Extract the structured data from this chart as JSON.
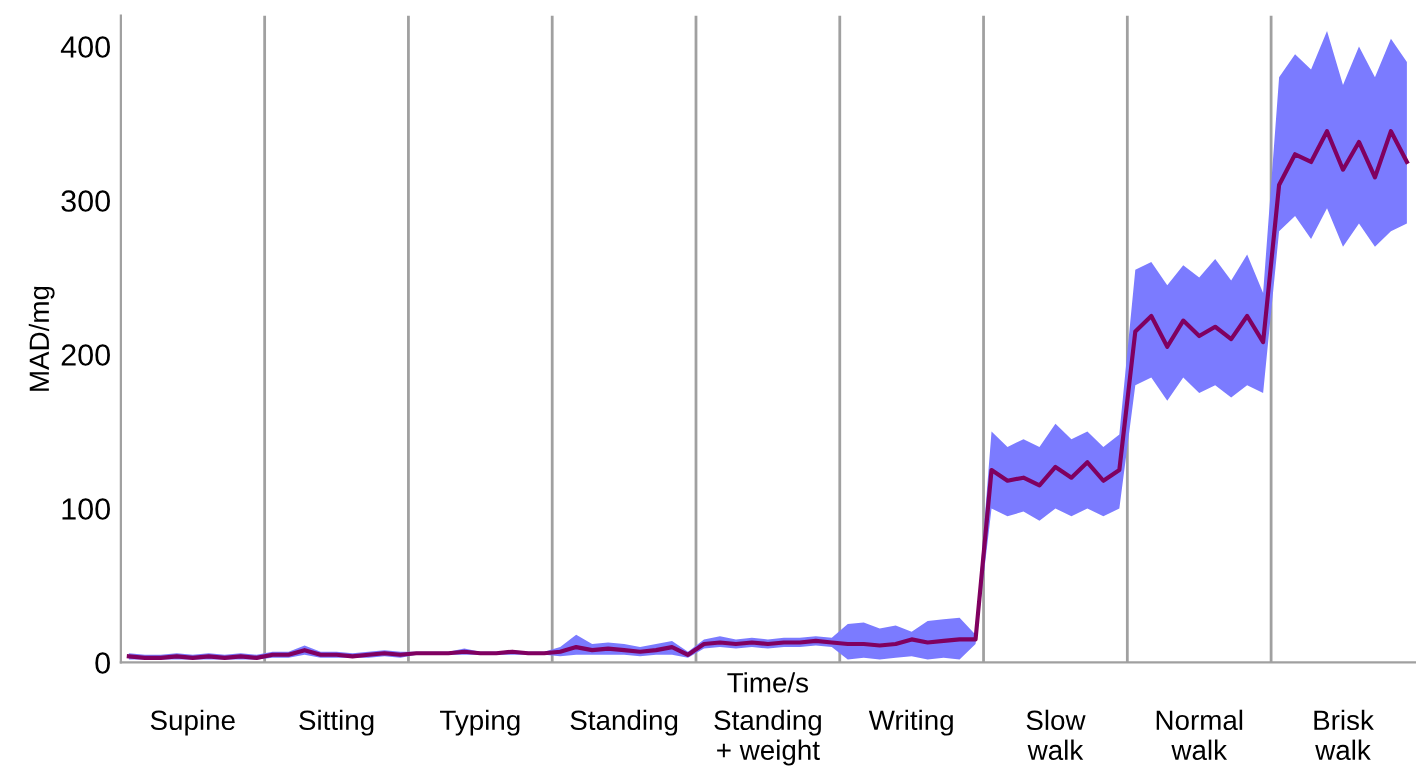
{
  "chart_data": {
    "type": "line",
    "xlabel": "Time/s",
    "ylabel": "MAD/mg",
    "categories": [
      null,
      null,
      null,
      null,
      "Supine",
      null,
      null,
      null,
      null,
      null,
      null,
      null,
      null,
      "Sitting",
      null,
      null,
      null,
      null,
      null,
      null,
      null,
      null,
      "Typing",
      null,
      null,
      null,
      null,
      null,
      null,
      null,
      null,
      "Standing",
      null,
      null,
      null,
      null,
      null,
      null,
      null,
      null,
      "Standing\n+ weight",
      null,
      null,
      null,
      null,
      null,
      null,
      null,
      null,
      "Writing",
      null,
      null,
      null,
      null,
      null,
      null,
      null,
      null,
      "Slow\nwalk",
      null,
      null,
      null,
      null,
      null,
      null,
      null,
      null,
      "Normal\nwalk",
      null,
      null,
      null,
      null,
      null,
      null,
      null,
      null,
      "Brisk\nwalk",
      null,
      null,
      null,
      null
    ],
    "series": [
      {
        "color": "#800060",
        "values": [
          4,
          3,
          3,
          4,
          3,
          4,
          3,
          4,
          3,
          5,
          5,
          8,
          5,
          5,
          4,
          5,
          6,
          5,
          6,
          6,
          6,
          7,
          6,
          6,
          7,
          6,
          6,
          7,
          10,
          8,
          9,
          8,
          7,
          8,
          10,
          5,
          12,
          13,
          12,
          13,
          12,
          13,
          13,
          14,
          13,
          12,
          12,
          11,
          12,
          15,
          13,
          14,
          15,
          15,
          125,
          118,
          120,
          115,
          127,
          120,
          130,
          118,
          125,
          215,
          225,
          205,
          222,
          212,
          218,
          210,
          225,
          208,
          310,
          330,
          325,
          345,
          320,
          338,
          315,
          345,
          325
        ],
        "lower": [
          2,
          2,
          2,
          2,
          2,
          2,
          2,
          2,
          2,
          3,
          3,
          5,
          3,
          3,
          3,
          3,
          4,
          3,
          5,
          5,
          5,
          5,
          5,
          5,
          5,
          5,
          5,
          4,
          5,
          5,
          5,
          5,
          4,
          5,
          5,
          3,
          9,
          10,
          9,
          10,
          9,
          10,
          10,
          11,
          10,
          2,
          3,
          2,
          3,
          4,
          2,
          3,
          2,
          12,
          100,
          95,
          98,
          92,
          100,
          95,
          100,
          95,
          100,
          180,
          185,
          170,
          185,
          175,
          180,
          172,
          180,
          175,
          280,
          290,
          275,
          295,
          270,
          285,
          270,
          280,
          285
        ],
        "upper": [
          6,
          5,
          5,
          6,
          5,
          6,
          5,
          6,
          5,
          7,
          7,
          11,
          7,
          7,
          6,
          7,
          8,
          7,
          7,
          7,
          7,
          9,
          7,
          7,
          8,
          7,
          7,
          10,
          18,
          12,
          13,
          12,
          10,
          12,
          14,
          7,
          15,
          17,
          15,
          16,
          15,
          16,
          16,
          17,
          16,
          25,
          26,
          22,
          24,
          20,
          27,
          28,
          29,
          18,
          150,
          140,
          145,
          140,
          155,
          145,
          150,
          140,
          148,
          255,
          260,
          245,
          258,
          250,
          262,
          248,
          265,
          240,
          380,
          395,
          385,
          410,
          375,
          400,
          380,
          405,
          390
        ]
      }
    ],
    "ylim": [
      0,
      420
    ],
    "yticks": [
      0,
      100,
      200,
      300,
      400
    ],
    "grid": false,
    "legend": false
  }
}
